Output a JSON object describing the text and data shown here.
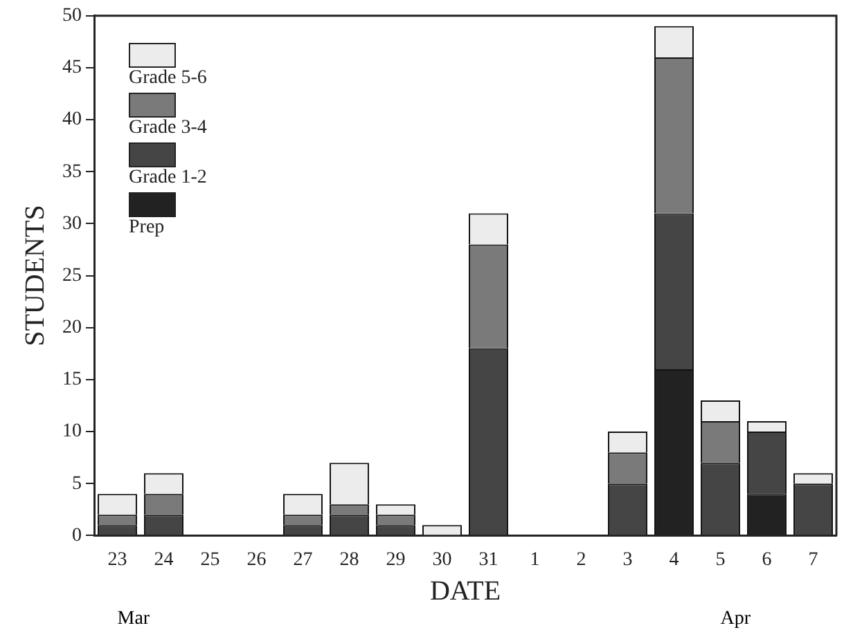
{
  "chart_data": {
    "type": "bar",
    "xlabel": "DATE",
    "ylabel": "STUDENTS",
    "categories": [
      "23",
      "24",
      "25",
      "26",
      "27",
      "28",
      "29",
      "30",
      "31",
      "1",
      "2",
      "3",
      "4",
      "5",
      "6",
      "7"
    ],
    "series": [
      {
        "name": "Prep",
        "color": "#222222",
        "values": [
          0,
          0,
          0,
          0,
          0,
          0,
          0,
          0,
          0,
          0,
          0,
          0,
          16,
          0,
          4,
          0
        ]
      },
      {
        "name": "Grade 1-2",
        "color": "#454545",
        "values": [
          1,
          2,
          0,
          0,
          1,
          2,
          1,
          0,
          18,
          0,
          0,
          5,
          15,
          7,
          6,
          5
        ]
      },
      {
        "name": "Grade 3-4",
        "color": "#7a7a7a",
        "values": [
          1,
          2,
          0,
          0,
          1,
          1,
          1,
          0,
          10,
          0,
          0,
          3,
          15,
          4,
          0,
          0
        ]
      },
      {
        "name": "Grade 5-6",
        "color": "#ececec",
        "values": [
          2,
          2,
          0,
          0,
          2,
          4,
          1,
          1,
          3,
          0,
          0,
          2,
          3,
          2,
          1,
          1
        ]
      }
    ],
    "stacked": true,
    "ylim": [
      0,
      50
    ],
    "yticks": [
      0,
      5,
      10,
      15,
      20,
      25,
      30,
      35,
      40,
      45,
      50
    ],
    "grid": false,
    "legend": "top left",
    "annotations": [
      "Mar",
      "Apr"
    ]
  }
}
